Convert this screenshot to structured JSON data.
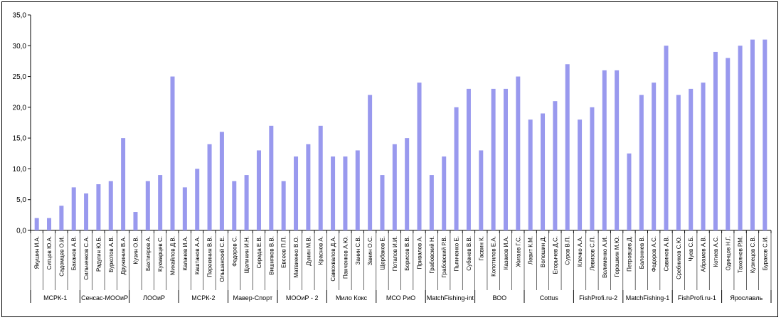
{
  "chart_data": {
    "type": "bar",
    "title": "",
    "xlabel": "",
    "ylabel": "",
    "ylim": [
      0,
      35
    ],
    "yticks": [
      "0,0",
      "5,0",
      "10,0",
      "15,0",
      "20,0",
      "25,0",
      "30,0",
      "35,0"
    ],
    "bar_color": "#9999ee",
    "grid": false,
    "legend": "none",
    "groups": [
      {
        "name": "МСРК-1",
        "categories": [
          "Якушин И.А.",
          "Ситцов Ю.А.",
          "Садомцев О.И.",
          "Баканов А.В."
        ],
        "values": [
          2,
          2,
          4,
          7
        ]
      },
      {
        "name": "Сенсас-МООиР",
        "categories": [
          "Сильченков С.А.",
          "Радугин Ю.Б.",
          "Буркотов А.В.",
          "Дружинин В.А."
        ],
        "values": [
          6,
          7.5,
          8,
          15
        ]
      },
      {
        "name": "ЛООиР",
        "categories": [
          "Кузин О.В.",
          "Бахтияров А.",
          "Кукмарцев С.",
          "Михайлов Д.В."
        ],
        "values": [
          3,
          8,
          9,
          25
        ]
      },
      {
        "name": "МСРК-2",
        "categories": [
          "Калачев И.А.",
          "Каштанов А.А.",
          "Перекинин В.В.",
          "Ольшанский С.Е."
        ],
        "values": [
          7,
          10,
          14,
          16
        ]
      },
      {
        "name": "Мавер-Спорт",
        "categories": [
          "Федоров С.",
          "Щелинин И.Н.",
          "Середа Е.В.",
          "Вишняков В.В."
        ],
        "values": [
          8,
          9,
          13,
          17
        ]
      },
      {
        "name": "МООиР - 2",
        "categories": [
          "Евсеев П.П.",
          "Матвиенко В.О.",
          "Дунин М.В.",
          "Краснов А."
        ],
        "values": [
          8,
          12,
          14,
          17
        ]
      },
      {
        "name": "Мило Кокс",
        "categories": [
          "Самохвалов Д.А.",
          "Панченков А.Ю.",
          "Занин С.В.",
          "Занин О.С."
        ],
        "values": [
          12,
          12,
          13,
          22
        ]
      },
      {
        "name": "МСО РиО",
        "categories": [
          "Щербаков Е.",
          "Потапов И.И.",
          "Борисов В.В.",
          "Привалов А."
        ],
        "values": [
          9,
          14,
          15,
          24
        ]
      },
      {
        "name": "MatchFishing-int",
        "categories": [
          "Грабовский Н.",
          "Грабовский Р.В.",
          "Пьянченко Е.",
          "Субачев В.В."
        ],
        "values": [
          9,
          12,
          20,
          23
        ]
      },
      {
        "name": "ВОО",
        "categories": [
          "Гасвин К.",
          "Колотилов Е.А.",
          "Казаков И.А.",
          "Жигаев Г.С."
        ],
        "values": [
          13,
          23,
          23,
          25
        ]
      },
      {
        "name": "Cottus",
        "categories": [
          "Левит К.М.",
          "Волошин Д.",
          "Егорычев Д.С.",
          "Суров В.П."
        ],
        "values": [
          18,
          19,
          21,
          27
        ]
      },
      {
        "name": "FishProfi.ru-2",
        "categories": [
          "Клечко А.А.",
          "Левизов С.П.",
          "Волименко А.И.",
          "Горошкин М.Ю."
        ],
        "values": [
          18,
          20,
          26,
          26
        ]
      },
      {
        "name": "MatchFishing-1",
        "categories": [
          "Петровцев Д.",
          "Балоннев В.",
          "Федоров А.С.",
          "Савинов А.В."
        ],
        "values": [
          12.5,
          22,
          24,
          30
        ]
      },
      {
        "name": "FishProfi.ru-1",
        "categories": [
          "Сребников С.Ю.",
          "Чуев С.Б.",
          "Абрамов А.В.",
          "Котиев А.С."
        ],
        "values": [
          22,
          23,
          24,
          29
        ]
      },
      {
        "name": "Ярославль",
        "categories": [
          "Одинцов Н.Г.",
          "Тахоянов Р.М.",
          "Кузнецов С.В.",
          "Бураков С.И."
        ],
        "values": [
          28,
          30,
          31,
          31
        ]
      }
    ]
  }
}
